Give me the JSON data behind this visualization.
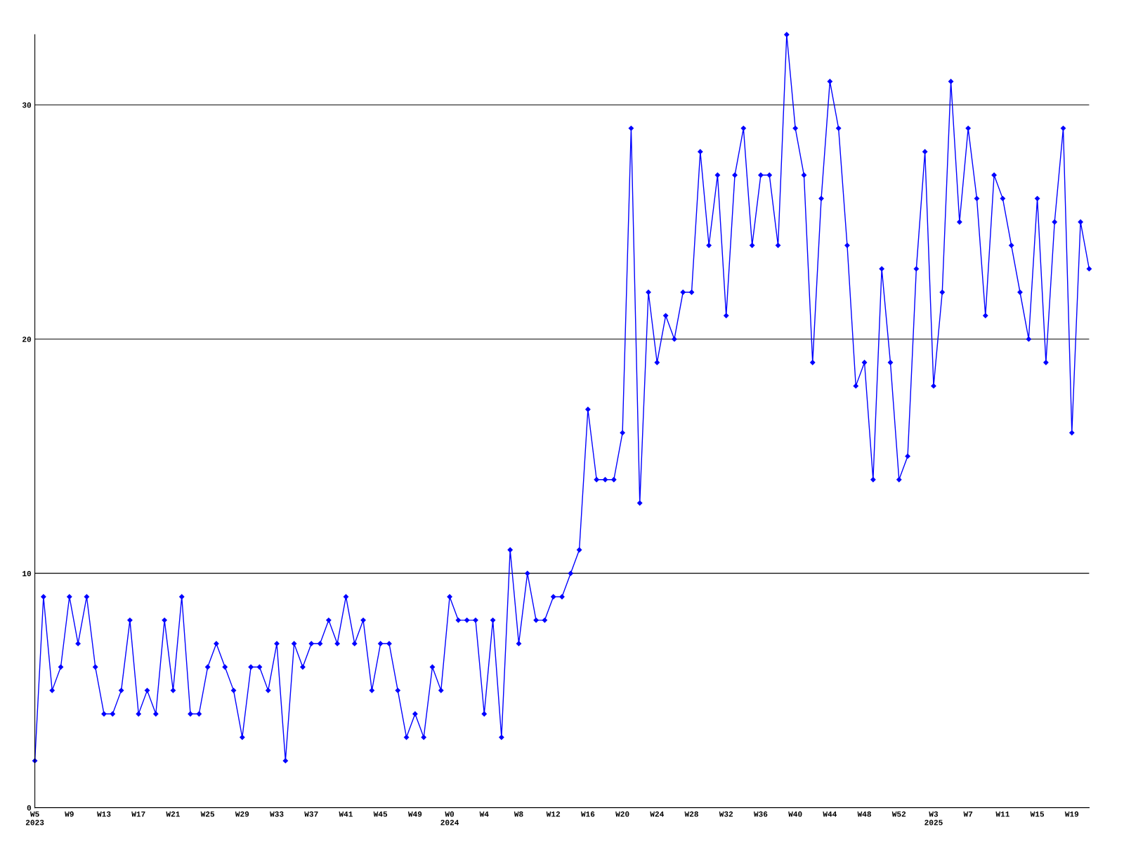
{
  "chart_data": {
    "type": "line",
    "categories": [
      "W5\n2023",
      null,
      null,
      null,
      "W9",
      null,
      null,
      null,
      "W13",
      null,
      null,
      null,
      "W17",
      null,
      null,
      null,
      "W21",
      null,
      null,
      null,
      "W25",
      null,
      null,
      null,
      "W29",
      null,
      null,
      null,
      "W33",
      null,
      null,
      null,
      "W37",
      null,
      null,
      null,
      "W41",
      null,
      null,
      null,
      "W45",
      null,
      null,
      null,
      "W49",
      null,
      null,
      null,
      "W0\n2024",
      null,
      null,
      null,
      "W4",
      null,
      null,
      null,
      "W8",
      null,
      null,
      null,
      "W12",
      null,
      null,
      null,
      "W16",
      null,
      null,
      null,
      "W20",
      null,
      null,
      null,
      "W24",
      null,
      null,
      null,
      "W28",
      null,
      null,
      null,
      "W32",
      null,
      null,
      null,
      "W36",
      null,
      null,
      null,
      "W40",
      null,
      null,
      null,
      "W44",
      null,
      null,
      null,
      "W48",
      null,
      null,
      null,
      "W52",
      null,
      null,
      null,
      "W3\n2025",
      null,
      null,
      null,
      "W7",
      null,
      null,
      null,
      "W11",
      null,
      null,
      null,
      "W15",
      null,
      null,
      null,
      "W19",
      null,
      null
    ],
    "series": [
      {
        "color": "#0000ff",
        "values": [
          2,
          9,
          5,
          6,
          9,
          7,
          9,
          6,
          4,
          4,
          5,
          8,
          4,
          5,
          4,
          8,
          5,
          9,
          4,
          4,
          6,
          7,
          6,
          5,
          3,
          6,
          6,
          5,
          7,
          2,
          7,
          6,
          7,
          7,
          8,
          7,
          9,
          7,
          8,
          5,
          7,
          7,
          5,
          3,
          4,
          3,
          6,
          5,
          9,
          8,
          8,
          8,
          4,
          8,
          3,
          11,
          7,
          10,
          8,
          8,
          9,
          9,
          10,
          11,
          17,
          14,
          14,
          14,
          16,
          29,
          13,
          22,
          19,
          21,
          20,
          22,
          22,
          28,
          24,
          27,
          21,
          27,
          29,
          24,
          27,
          27,
          24,
          33,
          29,
          27,
          19,
          26,
          31,
          29,
          24,
          18,
          19,
          14,
          23,
          19,
          14,
          15,
          23,
          28,
          18,
          22,
          31,
          25,
          29,
          26,
          21,
          27,
          26,
          24,
          22,
          20,
          26,
          19,
          25,
          29,
          16,
          25,
          23
        ]
      }
    ],
    "ylim": [
      0,
      33
    ],
    "yticks": [
      0,
      10,
      20,
      30
    ],
    "grid": "y",
    "marker": "diamond",
    "line_style": "solid"
  }
}
